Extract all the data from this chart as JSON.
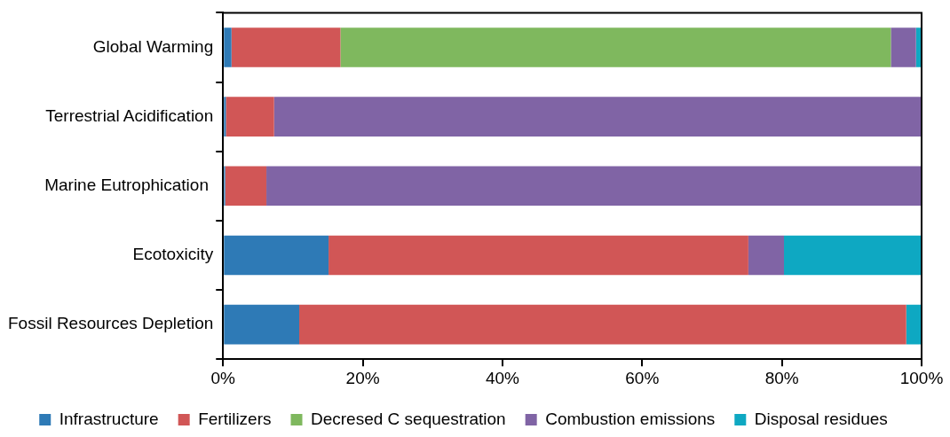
{
  "chart_data": {
    "type": "bar",
    "orientation": "horizontal",
    "stacked": true,
    "categories": [
      "Global Warming",
      "Terrestrial Acidification",
      "Marine Eutrophication ",
      "Ecotoxicity",
      "Fossil Resources Depletion"
    ],
    "series": [
      {
        "name": "Infrastructure",
        "color": "#2e7ab6",
        "values": [
          1.2,
          0.4,
          0.3,
          15.1,
          10.9
        ]
      },
      {
        "name": "Fertilizers",
        "color": "#d15656",
        "values": [
          15.6,
          6.9,
          5.9,
          60.1,
          86.9
        ]
      },
      {
        "name": "Decresed C sequestration",
        "color": "#7fb85e",
        "values": [
          78.8,
          0,
          0,
          0,
          0
        ]
      },
      {
        "name": "Combustion emissions",
        "color": "#8064a5",
        "values": [
          3.6,
          92.7,
          93.8,
          5.1,
          0
        ]
      },
      {
        "name": "Disposal residues",
        "color": "#0ea8c2",
        "values": [
          0.8,
          0,
          0,
          19.7,
          2.2
        ]
      }
    ],
    "xlim": [
      0,
      100
    ],
    "xticks": [
      {
        "value": 0,
        "label": "0%"
      },
      {
        "value": 20,
        "label": "20%"
      },
      {
        "value": 40,
        "label": "40%"
      },
      {
        "value": 60,
        "label": "60%"
      },
      {
        "value": 80,
        "label": "80%"
      },
      {
        "value": 100,
        "label": "100%"
      }
    ],
    "grid": false,
    "legend": "bottom"
  }
}
